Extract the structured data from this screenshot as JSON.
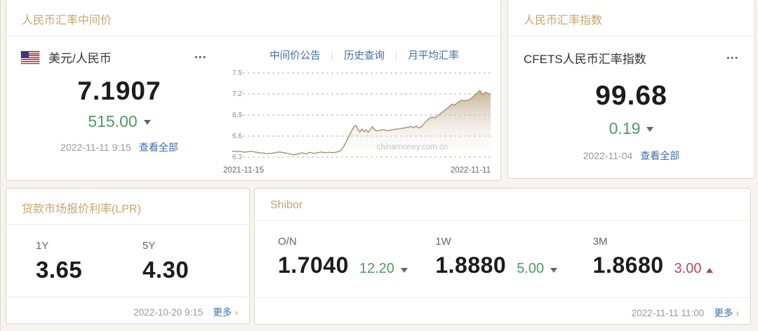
{
  "colors": {
    "accent_gold": "#c7a66b",
    "link_blue": "#3e6dab",
    "up_red": "#c2485c",
    "down_green": "#4f9a66",
    "chart_line": "#a68f6e"
  },
  "icons": {
    "ellipsis": "•••",
    "chevron_right": "›",
    "separator": "|"
  },
  "panels": {
    "central_parity": {
      "title": "人民币汇率中间价",
      "pair": "美元/人民币",
      "price": "7.1907",
      "change": "515.00",
      "change_direction": "down",
      "timestamp": "2022-11-11 9:15",
      "view_all": "查看全部",
      "links": [
        "中间价公告",
        "历史查询",
        "月平均汇率"
      ]
    },
    "index": {
      "title": "人民币汇率指数",
      "name": "CFETS人民币汇率指数",
      "value": "99.68",
      "change": "0.19",
      "change_direction": "down",
      "date": "2022-11-04",
      "view_all": "查看全部"
    },
    "lpr": {
      "title": "贷款市场报价利率(LPR)",
      "items": [
        {
          "label": "1Y",
          "value": "3.65"
        },
        {
          "label": "5Y",
          "value": "4.30"
        }
      ],
      "timestamp": "2022-10-20 9:15",
      "more": "更多"
    },
    "shibor": {
      "title": "Shibor",
      "items": [
        {
          "label": "O/N",
          "value": "1.7040",
          "change": "12.20",
          "direction": "down"
        },
        {
          "label": "1W",
          "value": "1.8880",
          "change": "5.00",
          "direction": "down"
        },
        {
          "label": "3M",
          "value": "1.8680",
          "change": "3.00",
          "direction": "up"
        }
      ],
      "timestamp": "2022-11-11 11:00",
      "more": "更多"
    }
  },
  "chart_data": {
    "type": "area",
    "series_name": "美元/人民币 中间价",
    "x_axis": {
      "start_label": "2021-11-15",
      "end_label": "2022-11-11"
    },
    "ylim": [
      6.3,
      7.5
    ],
    "yticks": [
      7.5,
      7.2,
      6.9,
      6.6,
      6.3
    ],
    "grid": "dashed-horizontal",
    "legend": "none",
    "watermark": "chinamoney.com.cn",
    "points": [
      [
        0,
        6.385
      ],
      [
        0.015,
        6.378
      ],
      [
        0.03,
        6.383
      ],
      [
        0.045,
        6.37
      ],
      [
        0.06,
        6.376
      ],
      [
        0.075,
        6.383
      ],
      [
        0.09,
        6.37
      ],
      [
        0.105,
        6.36
      ],
      [
        0.12,
        6.358
      ],
      [
        0.135,
        6.35
      ],
      [
        0.15,
        6.353
      ],
      [
        0.165,
        6.362
      ],
      [
        0.18,
        6.373
      ],
      [
        0.195,
        6.365
      ],
      [
        0.21,
        6.356
      ],
      [
        0.225,
        6.34
      ],
      [
        0.24,
        6.332
      ],
      [
        0.255,
        6.347
      ],
      [
        0.27,
        6.362
      ],
      [
        0.285,
        6.345
      ],
      [
        0.3,
        6.368
      ],
      [
        0.315,
        6.352
      ],
      [
        0.33,
        6.362
      ],
      [
        0.345,
        6.372
      ],
      [
        0.36,
        6.362
      ],
      [
        0.375,
        6.369
      ],
      [
        0.39,
        6.36
      ],
      [
        0.405,
        6.372
      ],
      [
        0.42,
        6.392
      ],
      [
        0.432,
        6.455
      ],
      [
        0.444,
        6.54
      ],
      [
        0.455,
        6.62
      ],
      [
        0.464,
        6.69
      ],
      [
        0.472,
        6.74
      ],
      [
        0.478,
        6.752
      ],
      [
        0.486,
        6.7
      ],
      [
        0.494,
        6.656
      ],
      [
        0.502,
        6.7
      ],
      [
        0.51,
        6.662
      ],
      [
        0.518,
        6.688
      ],
      [
        0.526,
        6.652
      ],
      [
        0.534,
        6.692
      ],
      [
        0.542,
        6.732
      ],
      [
        0.55,
        6.696
      ],
      [
        0.558,
        6.672
      ],
      [
        0.57,
        6.682
      ],
      [
        0.585,
        6.692
      ],
      [
        0.6,
        6.676
      ],
      [
        0.615,
        6.687
      ],
      [
        0.63,
        6.697
      ],
      [
        0.645,
        6.702
      ],
      [
        0.66,
        6.712
      ],
      [
        0.675,
        6.722
      ],
      [
        0.69,
        6.737
      ],
      [
        0.702,
        6.72
      ],
      [
        0.712,
        6.742
      ],
      [
        0.722,
        6.714
      ],
      [
        0.732,
        6.732
      ],
      [
        0.746,
        6.792
      ],
      [
        0.76,
        6.842
      ],
      [
        0.774,
        6.872
      ],
      [
        0.784,
        6.858
      ],
      [
        0.796,
        6.892
      ],
      [
        0.81,
        6.932
      ],
      [
        0.824,
        6.972
      ],
      [
        0.838,
        7.012
      ],
      [
        0.85,
        7.056
      ],
      [
        0.86,
        7.042
      ],
      [
        0.874,
        7.082
      ],
      [
        0.888,
        7.112
      ],
      [
        0.902,
        7.106
      ],
      [
        0.916,
        7.116
      ],
      [
        0.93,
        7.15
      ],
      [
        0.945,
        7.205
      ],
      [
        0.958,
        7.248
      ],
      [
        0.97,
        7.192
      ],
      [
        0.982,
        7.226
      ],
      [
        1,
        7.19
      ]
    ]
  }
}
